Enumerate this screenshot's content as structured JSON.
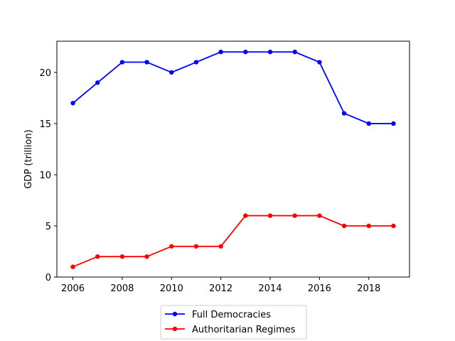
{
  "chart_data": {
    "type": "line",
    "title": "",
    "xlabel": "",
    "ylabel": "GDP (trillion)",
    "x": [
      2006,
      2007,
      2008,
      2009,
      2010,
      2011,
      2012,
      2013,
      2014,
      2015,
      2016,
      2017,
      2018,
      2019
    ],
    "series": [
      {
        "name": "Full Democracies",
        "color": "#0000ff",
        "values": [
          17,
          19,
          21,
          21,
          20,
          21,
          22,
          22,
          22,
          22,
          21,
          16,
          15,
          15
        ]
      },
      {
        "name": "Authoritarian Regimes",
        "color": "#ff0000",
        "values": [
          1,
          2,
          2,
          2,
          3,
          3,
          3,
          6,
          6,
          6,
          6,
          5,
          5,
          5
        ]
      }
    ],
    "xlim": [
      2005.35,
      2019.65
    ],
    "ylim": [
      0,
      23.05
    ],
    "xticks": [
      2006,
      2008,
      2010,
      2012,
      2014,
      2016,
      2018
    ],
    "yticks": [
      0,
      5,
      10,
      15,
      20
    ],
    "grid": false,
    "legend": "bottom-center"
  }
}
